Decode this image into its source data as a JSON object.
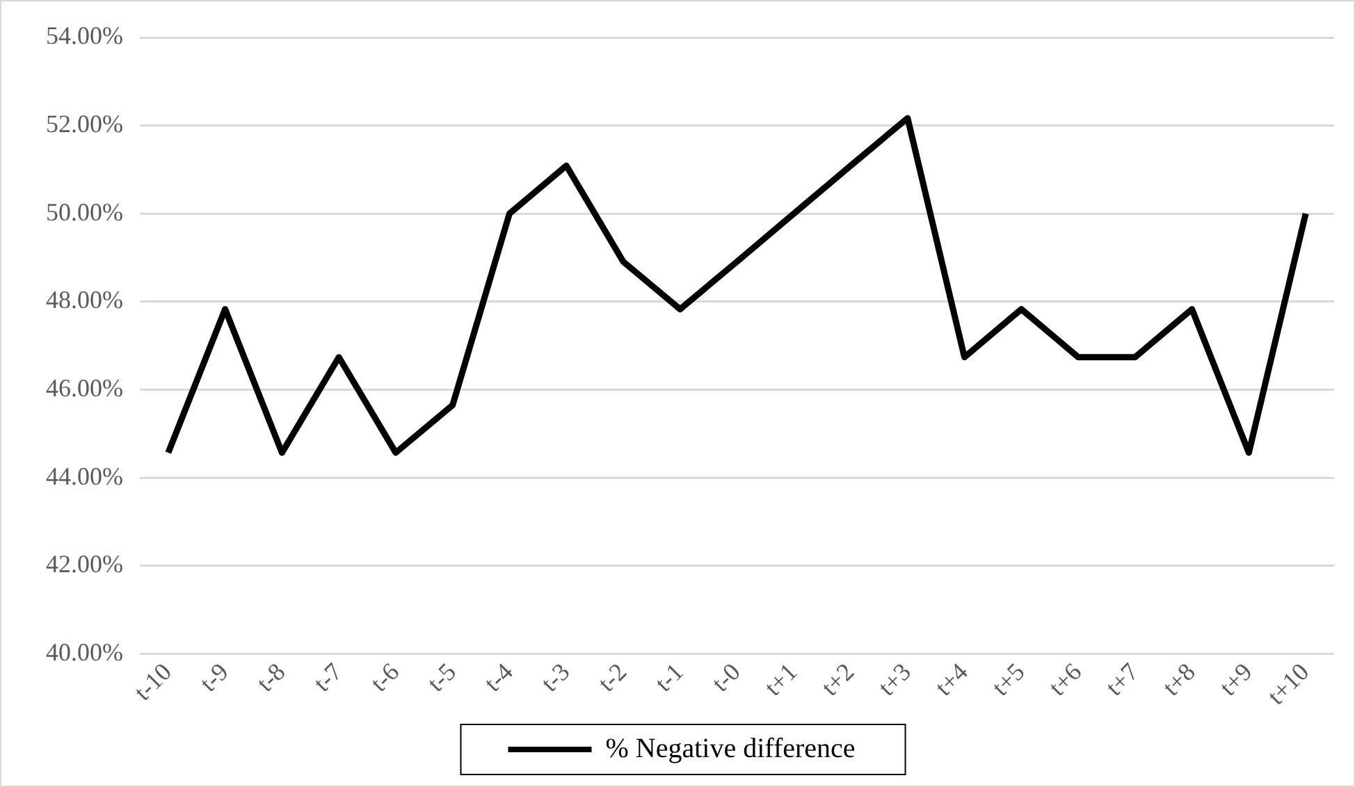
{
  "chart_data": {
    "type": "line",
    "categories": [
      "t-10",
      "t-9",
      "t-8",
      "t-7",
      "t-6",
      "t-5",
      "t-4",
      "t-3",
      "t-2",
      "t-1",
      "t-0",
      "t+1",
      "t+2",
      "t+3",
      "t+4",
      "t+5",
      "t+6",
      "t+7",
      "t+8",
      "t+9",
      "t+10"
    ],
    "series": [
      {
        "name": "% Negative difference",
        "color": "#000000",
        "values": [
          44.57,
          47.83,
          44.57,
          46.74,
          44.57,
          45.65,
          50.0,
          51.09,
          48.91,
          47.83,
          48.91,
          50.0,
          51.09,
          52.17,
          46.74,
          47.83,
          46.74,
          46.74,
          47.83,
          44.57,
          50.0
        ]
      }
    ],
    "ylim": [
      40,
      54
    ],
    "yticks": [
      {
        "value": 40,
        "label": "40.00%"
      },
      {
        "value": 42,
        "label": "42.00%"
      },
      {
        "value": 44,
        "label": "44.00%"
      },
      {
        "value": 46,
        "label": "46.00%"
      },
      {
        "value": 48,
        "label": "48.00%"
      },
      {
        "value": 50,
        "label": "50.00%"
      },
      {
        "value": 52,
        "label": "52.00%"
      },
      {
        "value": 54,
        "label": "54.00%"
      }
    ],
    "grid": "y",
    "legend": "bottom",
    "marker": "none",
    "line_style": "solid"
  }
}
